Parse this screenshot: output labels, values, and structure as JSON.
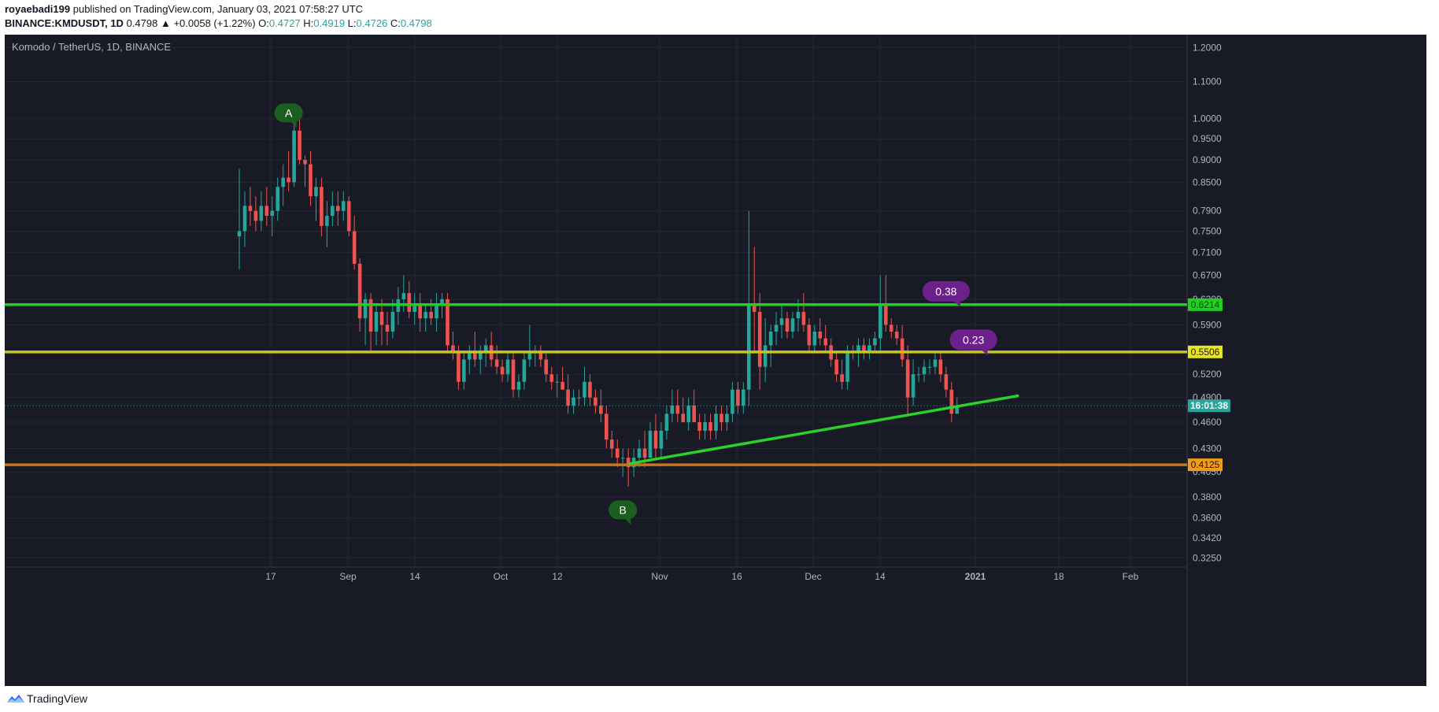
{
  "header": {
    "author": "royaebadi199",
    "published_text": "published on TradingView.com, January 03, 2021 07:58:27 UTC",
    "symbol_line": {
      "symbol": "BINANCE:KMDUSDT, 1D",
      "last": "0.4798",
      "change": "▲ +0.0058 (+1.22%)",
      "o_label": "O:",
      "o_value": "0.4727",
      "h_label": "H:",
      "h_value": "0.4919",
      "l_label": "L:",
      "l_value": "0.4726",
      "c_label": "C:",
      "c_value": "0.4798"
    }
  },
  "legend": "Komodo / TetherUS, 1D, BINANCE",
  "footer": {
    "brand": "TradingView"
  },
  "colors": {
    "background": "#181b25",
    "grid": "#242733",
    "up": "#26a69a",
    "down": "#ef5350",
    "resistance_green": "#1fd11f",
    "yellow_line": "#c8c51f",
    "orange_line": "#c9731f",
    "trendline": "#2bd12b",
    "callout_purple": "#6d1f8c",
    "marker_green": "#1b5e20",
    "countdown_box": "#26a69a"
  },
  "chart_data": {
    "type": "candlestick",
    "scale": "log",
    "ylim": [
      0.3175,
      1.24
    ],
    "x_tick_labels": [
      "17",
      "Sep",
      "14",
      "Oct",
      "12",
      "Nov",
      "16",
      "Dec",
      "14",
      "2021",
      "18",
      "Feb"
    ],
    "y_tick_labels": [
      "1.2000",
      "1.1000",
      "1.0000",
      "0.9500",
      "0.9000",
      "0.8500",
      "0.7900",
      "0.7500",
      "0.7100",
      "0.6700",
      "0.6300",
      "0.5900",
      "0.5200",
      "0.4900",
      "0.4600",
      "0.4300",
      "0.4050",
      "0.3800",
      "0.3600",
      "0.3420",
      "0.3250"
    ],
    "y_ticks": [
      1.2,
      1.1,
      1.0,
      0.95,
      0.9,
      0.85,
      0.79,
      0.75,
      0.71,
      0.67,
      0.63,
      0.59,
      0.52,
      0.49,
      0.46,
      0.43,
      0.405,
      0.38,
      0.36,
      0.342,
      0.325
    ],
    "horizontal_levels": [
      {
        "price": 0.6214,
        "label": "0.6214",
        "color": "#1fd11f"
      },
      {
        "price": 0.5506,
        "label": "0.5506",
        "color": "#e8e41f"
      },
      {
        "price": 0.4125,
        "label": "0.4125",
        "color": "#f09a1a"
      }
    ],
    "last_price": 0.4798,
    "countdown": "16:01:38",
    "trendline": {
      "from_day": 71,
      "from_price": 0.4135,
      "to_day": 142,
      "to_price": 0.492
    },
    "annotations": [
      {
        "text": "A",
        "day": 9,
        "price": 1.015
      },
      {
        "text": "B",
        "day": 70,
        "price": 0.3675
      },
      {
        "text": "0.38",
        "day": 129,
        "price": 0.643
      },
      {
        "text": "0.23",
        "day": 134,
        "price": 0.568
      }
    ],
    "candles": [
      [
        0.74,
        0.88,
        0.68,
        0.75
      ],
      [
        0.75,
        0.83,
        0.72,
        0.8
      ],
      [
        0.8,
        0.84,
        0.76,
        0.79
      ],
      [
        0.79,
        0.82,
        0.75,
        0.77
      ],
      [
        0.77,
        0.83,
        0.75,
        0.8
      ],
      [
        0.8,
        0.84,
        0.76,
        0.78
      ],
      [
        0.78,
        0.82,
        0.74,
        0.79
      ],
      [
        0.79,
        0.86,
        0.77,
        0.84
      ],
      [
        0.84,
        0.89,
        0.8,
        0.86
      ],
      [
        0.86,
        0.92,
        0.83,
        0.85
      ],
      [
        0.85,
        0.99,
        0.84,
        0.97
      ],
      [
        0.97,
        1.0,
        0.89,
        0.9
      ],
      [
        0.9,
        0.91,
        0.84,
        0.89
      ],
      [
        0.89,
        0.92,
        0.8,
        0.82
      ],
      [
        0.82,
        0.86,
        0.77,
        0.84
      ],
      [
        0.84,
        0.86,
        0.74,
        0.76
      ],
      [
        0.76,
        0.81,
        0.72,
        0.78
      ],
      [
        0.78,
        0.83,
        0.76,
        0.8
      ],
      [
        0.8,
        0.83,
        0.76,
        0.79
      ],
      [
        0.79,
        0.83,
        0.77,
        0.81
      ],
      [
        0.81,
        0.82,
        0.74,
        0.75
      ],
      [
        0.75,
        0.78,
        0.68,
        0.69
      ],
      [
        0.69,
        0.7,
        0.58,
        0.6
      ],
      [
        0.6,
        0.64,
        0.56,
        0.63
      ],
      [
        0.63,
        0.64,
        0.55,
        0.58
      ],
      [
        0.58,
        0.62,
        0.56,
        0.61
      ],
      [
        0.61,
        0.63,
        0.56,
        0.59
      ],
      [
        0.59,
        0.61,
        0.56,
        0.58
      ],
      [
        0.58,
        0.63,
        0.57,
        0.61
      ],
      [
        0.61,
        0.65,
        0.59,
        0.63
      ],
      [
        0.63,
        0.67,
        0.61,
        0.64
      ],
      [
        0.64,
        0.66,
        0.6,
        0.61
      ],
      [
        0.61,
        0.64,
        0.59,
        0.62
      ],
      [
        0.62,
        0.64,
        0.58,
        0.6
      ],
      [
        0.6,
        0.62,
        0.58,
        0.61
      ],
      [
        0.61,
        0.63,
        0.59,
        0.6
      ],
      [
        0.6,
        0.64,
        0.58,
        0.62
      ],
      [
        0.62,
        0.64,
        0.6,
        0.63
      ],
      [
        0.63,
        0.64,
        0.55,
        0.56
      ],
      [
        0.56,
        0.58,
        0.54,
        0.55
      ],
      [
        0.55,
        0.56,
        0.5,
        0.51
      ],
      [
        0.51,
        0.55,
        0.5,
        0.54
      ],
      [
        0.54,
        0.56,
        0.52,
        0.55
      ],
      [
        0.55,
        0.58,
        0.53,
        0.54
      ],
      [
        0.54,
        0.56,
        0.52,
        0.55
      ],
      [
        0.55,
        0.57,
        0.53,
        0.56
      ],
      [
        0.56,
        0.58,
        0.53,
        0.54
      ],
      [
        0.54,
        0.56,
        0.52,
        0.53
      ],
      [
        0.53,
        0.54,
        0.51,
        0.52
      ],
      [
        0.52,
        0.55,
        0.51,
        0.54
      ],
      [
        0.54,
        0.55,
        0.49,
        0.5
      ],
      [
        0.5,
        0.52,
        0.49,
        0.51
      ],
      [
        0.51,
        0.55,
        0.5,
        0.54
      ],
      [
        0.54,
        0.59,
        0.53,
        0.55
      ],
      [
        0.55,
        0.56,
        0.53,
        0.55
      ],
      [
        0.55,
        0.56,
        0.53,
        0.54
      ],
      [
        0.54,
        0.55,
        0.51,
        0.52
      ],
      [
        0.52,
        0.53,
        0.5,
        0.51
      ],
      [
        0.51,
        0.52,
        0.49,
        0.51
      ],
      [
        0.51,
        0.53,
        0.5,
        0.5
      ],
      [
        0.5,
        0.52,
        0.47,
        0.48
      ],
      [
        0.48,
        0.5,
        0.47,
        0.49
      ],
      [
        0.49,
        0.5,
        0.48,
        0.49
      ],
      [
        0.49,
        0.53,
        0.48,
        0.51
      ],
      [
        0.51,
        0.52,
        0.48,
        0.49
      ],
      [
        0.49,
        0.5,
        0.47,
        0.48
      ],
      [
        0.48,
        0.5,
        0.46,
        0.47
      ],
      [
        0.47,
        0.48,
        0.43,
        0.44
      ],
      [
        0.44,
        0.45,
        0.42,
        0.43
      ],
      [
        0.43,
        0.44,
        0.41,
        0.42
      ],
      [
        0.42,
        0.43,
        0.4,
        0.42
      ],
      [
        0.42,
        0.43,
        0.39,
        0.41
      ],
      [
        0.41,
        0.43,
        0.4,
        0.42
      ],
      [
        0.42,
        0.44,
        0.41,
        0.43
      ],
      [
        0.43,
        0.45,
        0.41,
        0.42
      ],
      [
        0.42,
        0.46,
        0.42,
        0.45
      ],
      [
        0.45,
        0.47,
        0.42,
        0.43
      ],
      [
        0.43,
        0.46,
        0.42,
        0.45
      ],
      [
        0.45,
        0.48,
        0.44,
        0.47
      ],
      [
        0.47,
        0.5,
        0.46,
        0.48
      ],
      [
        0.48,
        0.5,
        0.46,
        0.47
      ],
      [
        0.47,
        0.49,
        0.46,
        0.46
      ],
      [
        0.46,
        0.49,
        0.45,
        0.48
      ],
      [
        0.48,
        0.5,
        0.46,
        0.46
      ],
      [
        0.46,
        0.47,
        0.44,
        0.45
      ],
      [
        0.45,
        0.47,
        0.44,
        0.46
      ],
      [
        0.46,
        0.47,
        0.44,
        0.45
      ],
      [
        0.45,
        0.48,
        0.44,
        0.47
      ],
      [
        0.47,
        0.48,
        0.45,
        0.46
      ],
      [
        0.46,
        0.48,
        0.45,
        0.47
      ],
      [
        0.47,
        0.51,
        0.46,
        0.5
      ],
      [
        0.5,
        0.51,
        0.47,
        0.48
      ],
      [
        0.48,
        0.51,
        0.47,
        0.5
      ],
      [
        0.5,
        0.79,
        0.48,
        0.62
      ],
      [
        0.62,
        0.72,
        0.55,
        0.61
      ],
      [
        0.61,
        0.64,
        0.5,
        0.53
      ],
      [
        0.53,
        0.6,
        0.51,
        0.56
      ],
      [
        0.56,
        0.59,
        0.53,
        0.58
      ],
      [
        0.58,
        0.61,
        0.56,
        0.59
      ],
      [
        0.59,
        0.62,
        0.57,
        0.6
      ],
      [
        0.6,
        0.61,
        0.57,
        0.58
      ],
      [
        0.58,
        0.61,
        0.57,
        0.6
      ],
      [
        0.6,
        0.63,
        0.58,
        0.61
      ],
      [
        0.61,
        0.64,
        0.58,
        0.59
      ],
      [
        0.59,
        0.6,
        0.55,
        0.56
      ],
      [
        0.56,
        0.59,
        0.55,
        0.58
      ],
      [
        0.58,
        0.6,
        0.56,
        0.57
      ],
      [
        0.57,
        0.59,
        0.55,
        0.56
      ],
      [
        0.56,
        0.57,
        0.53,
        0.54
      ],
      [
        0.54,
        0.55,
        0.51,
        0.52
      ],
      [
        0.52,
        0.54,
        0.5,
        0.51
      ],
      [
        0.51,
        0.56,
        0.5,
        0.55
      ],
      [
        0.55,
        0.56,
        0.54,
        0.55
      ],
      [
        0.55,
        0.57,
        0.53,
        0.56
      ],
      [
        0.56,
        0.57,
        0.54,
        0.55
      ],
      [
        0.55,
        0.57,
        0.54,
        0.56
      ],
      [
        0.56,
        0.58,
        0.55,
        0.57
      ],
      [
        0.57,
        0.67,
        0.55,
        0.62
      ],
      [
        0.62,
        0.67,
        0.58,
        0.59
      ],
      [
        0.59,
        0.6,
        0.57,
        0.58
      ],
      [
        0.58,
        0.59,
        0.56,
        0.57
      ],
      [
        0.57,
        0.59,
        0.53,
        0.54
      ],
      [
        0.54,
        0.56,
        0.47,
        0.49
      ],
      [
        0.49,
        0.54,
        0.48,
        0.52
      ],
      [
        0.52,
        0.53,
        0.51,
        0.52
      ],
      [
        0.52,
        0.54,
        0.51,
        0.53
      ],
      [
        0.53,
        0.54,
        0.52,
        0.53
      ],
      [
        0.53,
        0.55,
        0.52,
        0.54
      ],
      [
        0.54,
        0.55,
        0.51,
        0.52
      ],
      [
        0.52,
        0.53,
        0.49,
        0.5
      ],
      [
        0.5,
        0.51,
        0.46,
        0.47
      ],
      [
        0.47,
        0.49,
        0.47,
        0.48
      ]
    ]
  }
}
